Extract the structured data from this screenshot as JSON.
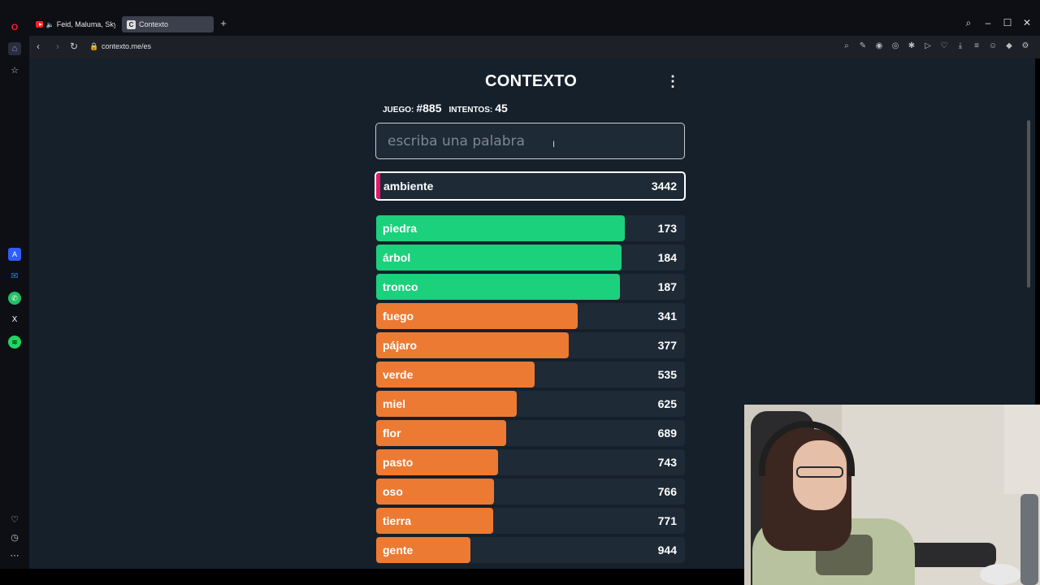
{
  "browser": {
    "tabs": [
      {
        "label": "Feid, Maluma, Sky - Fi"
      },
      {
        "label": "Contexto"
      }
    ],
    "url": "contexto.me/es"
  },
  "game": {
    "title": "CONTEXTO",
    "game_label": "JUEGO:",
    "game_number": "#885",
    "attempts_label": "INTENTOS:",
    "attempts": "45",
    "input_placeholder": "escriba una palabra",
    "current_guess": {
      "word": "ambiente",
      "rank": "3442",
      "color": "#e6176a"
    },
    "colors": {
      "green": "#1bd17c",
      "orange": "#ec7a33"
    },
    "guesses": [
      {
        "word": "piedra",
        "rank": "173",
        "fill": 0.805,
        "color": "green"
      },
      {
        "word": "árbol",
        "rank": "184",
        "fill": 0.795,
        "color": "green"
      },
      {
        "word": "tronco",
        "rank": "187",
        "fill": 0.79,
        "color": "green"
      },
      {
        "word": "fuego",
        "rank": "341",
        "fill": 0.652,
        "color": "orange"
      },
      {
        "word": "pájaro",
        "rank": "377",
        "fill": 0.624,
        "color": "orange"
      },
      {
        "word": "verde",
        "rank": "535",
        "fill": 0.512,
        "color": "orange"
      },
      {
        "word": "miel",
        "rank": "625",
        "fill": 0.456,
        "color": "orange"
      },
      {
        "word": "flor",
        "rank": "689",
        "fill": 0.421,
        "color": "orange"
      },
      {
        "word": "pasto",
        "rank": "743",
        "fill": 0.395,
        "color": "orange"
      },
      {
        "word": "oso",
        "rank": "766",
        "fill": 0.382,
        "color": "orange"
      },
      {
        "word": "tierra",
        "rank": "771",
        "fill": 0.38,
        "color": "orange"
      },
      {
        "word": "gente",
        "rank": "944",
        "fill": 0.305,
        "color": "orange"
      }
    ]
  }
}
